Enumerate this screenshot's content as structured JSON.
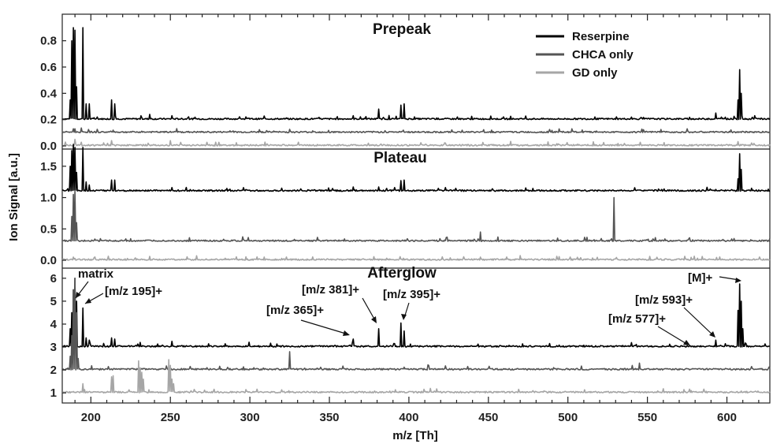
{
  "chart_data": {
    "type": "line",
    "xlabel": "m/z [Th]",
    "ylabel": "Ion Signal [a.u.]",
    "xlim": [
      182,
      627
    ],
    "xticks": [
      "200",
      "250",
      "300",
      "350",
      "400",
      "450",
      "500",
      "550",
      "600"
    ],
    "legend": {
      "placement": "top-right",
      "entries": [
        {
          "name": "Reserpine",
          "color": "#000000"
        },
        {
          "name": "CHCA only",
          "color": "#555555"
        },
        {
          "name": "GD only",
          "color": "#a6a6a6"
        }
      ]
    },
    "panels": [
      {
        "title": "Prepeak",
        "yticks": [
          "0.0",
          "0.2",
          "0.4",
          "0.6",
          "0.8"
        ],
        "ylim": [
          0,
          0.9
        ],
        "series": [
          {
            "name": "Reserpine",
            "color": "#000000",
            "baseline": 0.2,
            "peaks": [
              [
                187,
                0.35
              ],
              [
                188,
                0.8
              ],
              [
                189,
                0.9
              ],
              [
                190,
                0.88
              ],
              [
                191,
                0.45
              ],
              [
                195,
                0.9
              ],
              [
                197,
                0.32
              ],
              [
                199,
                0.32
              ],
              [
                213,
                0.35
              ],
              [
                215,
                0.32
              ],
              [
                237,
                0.24
              ],
              [
                251,
                0.23
              ],
              [
                365,
                0.23
              ],
              [
                381,
                0.28
              ],
              [
                395,
                0.31
              ],
              [
                397,
                0.32
              ],
              [
                593,
                0.25
              ],
              [
                607,
                0.35
              ],
              [
                608,
                0.58
              ],
              [
                609,
                0.4
              ]
            ]
          },
          {
            "name": "CHCA only",
            "color": "#555555",
            "baseline": 0.1,
            "peaks": [
              [
                189,
                0.13
              ],
              [
                190,
                0.13
              ],
              [
                452,
                0.12
              ],
              [
                575,
                0.13
              ]
            ]
          },
          {
            "name": "GD only",
            "color": "#a6a6a6",
            "baseline": 0.0,
            "peaks": [
              [
                190,
                0.05
              ],
              [
                213,
                0.04
              ],
              [
                250,
                0.04
              ]
            ]
          }
        ]
      },
      {
        "title": "Plateau",
        "yticks": [
          "0.0",
          "0.5",
          "1.0",
          "1.5"
        ],
        "ylim": [
          0,
          1.9
        ],
        "series": [
          {
            "name": "Reserpine",
            "color": "#000000",
            "baseline": 1.1,
            "peaks": [
              [
                187,
                1.5
              ],
              [
                188,
                1.75
              ],
              [
                189,
                1.85
              ],
              [
                190,
                1.8
              ],
              [
                191,
                1.4
              ],
              [
                195,
                1.8
              ],
              [
                197,
                1.25
              ],
              [
                199,
                1.2
              ],
              [
                213,
                1.28
              ],
              [
                215,
                1.28
              ],
              [
                251,
                1.16
              ],
              [
                365,
                1.17
              ],
              [
                381,
                1.17
              ],
              [
                395,
                1.27
              ],
              [
                397,
                1.28
              ],
              [
                593,
                1.13
              ],
              [
                607,
                1.3
              ],
              [
                608,
                1.7
              ],
              [
                609,
                1.45
              ]
            ]
          },
          {
            "name": "CHCA only",
            "color": "#555555",
            "baseline": 0.3,
            "peaks": [
              [
                188,
                0.7
              ],
              [
                189,
                1.05
              ],
              [
                190,
                1.1
              ],
              [
                191,
                0.6
              ],
              [
                445,
                0.45
              ],
              [
                529,
                1.0
              ]
            ]
          },
          {
            "name": "GD only",
            "color": "#a6a6a6",
            "baseline": 0.0,
            "peaks": [
              [
                190,
                0.03
              ]
            ]
          }
        ]
      },
      {
        "title": "Afterglow",
        "yticks": [
          "1",
          "2",
          "3",
          "4",
          "5",
          "6"
        ],
        "ylim": [
          0.8,
          6.2
        ],
        "series": [
          {
            "name": "Reserpine",
            "color": "#000000",
            "baseline": 3.0,
            "peaks": [
              [
                187,
                3.8
              ],
              [
                188,
                4.5
              ],
              [
                189,
                5.5
              ],
              [
                190,
                6.0
              ],
              [
                191,
                5.0
              ],
              [
                195,
                4.7
              ],
              [
                197,
                3.4
              ],
              [
                199,
                3.3
              ],
              [
                213,
                3.4
              ],
              [
                215,
                3.35
              ],
              [
                231,
                3.2
              ],
              [
                251,
                3.25
              ],
              [
                365,
                3.35
              ],
              [
                381,
                3.8
              ],
              [
                395,
                4.05
              ],
              [
                397,
                3.7
              ],
              [
                577,
                3.05
              ],
              [
                593,
                3.3
              ],
              [
                607,
                4.6
              ],
              [
                608,
                5.75
              ],
              [
                609,
                5.0
              ],
              [
                610,
                3.8
              ]
            ]
          },
          {
            "name": "CHCA only",
            "color": "#555555",
            "baseline": 2.0,
            "peaks": [
              [
                187,
                2.6
              ],
              [
                188,
                3.5
              ],
              [
                189,
                5.5
              ],
              [
                190,
                6.0
              ],
              [
                191,
                4.5
              ],
              [
                192,
                2.5
              ],
              [
                325,
                2.8
              ],
              [
                545,
                2.3
              ]
            ]
          },
          {
            "name": "GD only",
            "color": "#a6a6a6",
            "baseline": 1.0,
            "peaks": [
              [
                195,
                1.4
              ],
              [
                213,
                1.7
              ],
              [
                214,
                1.75
              ],
              [
                230,
                2.4
              ],
              [
                231,
                2.1
              ],
              [
                232,
                1.9
              ],
              [
                233,
                1.6
              ],
              [
                249,
                2.45
              ],
              [
                250,
                2.2
              ],
              [
                251,
                1.6
              ],
              [
                252,
                1.4
              ],
              [
                265,
                1.15
              ]
            ]
          }
        ]
      }
    ],
    "annotations": [
      "matrix",
      "[m/z 195]+",
      "[m/z 365]+",
      "[m/z 381]+",
      "[m/z 395]+",
      "[m/z 577]+",
      "[m/z 593]+",
      "[M]+"
    ]
  }
}
